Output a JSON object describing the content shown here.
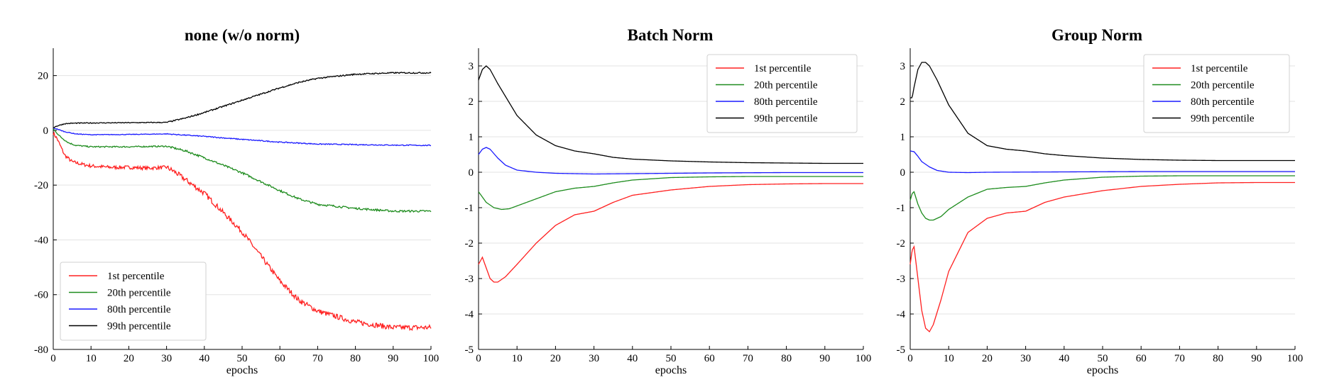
{
  "chart_data": [
    {
      "type": "line",
      "title": "none (w/o norm)",
      "xlabel": "epochs",
      "ylabel": "",
      "xlim": [
        0,
        100
      ],
      "ylim": [
        -80,
        30
      ],
      "xticks": [
        0,
        10,
        20,
        30,
        40,
        50,
        60,
        70,
        80,
        90,
        100
      ],
      "yticks": [
        -80,
        -60,
        -40,
        -20,
        0,
        20
      ],
      "grid": "horizontal",
      "legend_position": "lower-left",
      "series": [
        {
          "name": "1st percentile",
          "color": "#ff2020",
          "noise": 0.8,
          "x": [
            0,
            1,
            2,
            3,
            5,
            8,
            10,
            15,
            20,
            25,
            30,
            32,
            35,
            40,
            45,
            50,
            55,
            60,
            65,
            70,
            75,
            80,
            85,
            90,
            95,
            100
          ],
          "y": [
            -1,
            -3,
            -6,
            -9,
            -11.5,
            -12.5,
            -13,
            -13.5,
            -13.5,
            -13.8,
            -13.5,
            -15,
            -18,
            -23,
            -30,
            -37,
            -46,
            -55,
            -62,
            -66,
            -68,
            -70,
            -71,
            -72,
            -72,
            -72
          ]
        },
        {
          "name": "20th percentile",
          "color": "#1e8c1e",
          "noise": 0.3,
          "x": [
            0,
            1,
            2,
            4,
            6,
            10,
            20,
            30,
            35,
            40,
            50,
            60,
            65,
            70,
            80,
            90,
            100
          ],
          "y": [
            0.5,
            -1,
            -2.5,
            -4.5,
            -5.5,
            -6,
            -6,
            -5.8,
            -7.5,
            -10,
            -15.5,
            -22,
            -25,
            -27,
            -28.5,
            -29.5,
            -29.5
          ]
        },
        {
          "name": "80th percentile",
          "color": "#1a1aff",
          "noise": 0.15,
          "x": [
            0,
            1,
            3,
            6,
            10,
            20,
            30,
            40,
            50,
            60,
            70,
            80,
            90,
            100
          ],
          "y": [
            0.8,
            0.5,
            -0.5,
            -1.3,
            -1.6,
            -1.5,
            -1.3,
            -2.2,
            -3.3,
            -4.3,
            -5,
            -5.2,
            -5.4,
            -5.5
          ]
        },
        {
          "name": "99th percentile",
          "color": "#000000",
          "noise": 0.2,
          "x": [
            0,
            1,
            3,
            5,
            10,
            20,
            30,
            35,
            40,
            50,
            60,
            65,
            70,
            80,
            90,
            100
          ],
          "y": [
            1,
            1.6,
            2.4,
            2.6,
            2.7,
            2.8,
            2.9,
            4.5,
            6.5,
            11,
            15.5,
            17.5,
            19,
            20.5,
            21,
            21
          ]
        }
      ]
    },
    {
      "type": "line",
      "title": "Batch Norm",
      "xlabel": "epochs",
      "ylabel": "",
      "xlim": [
        0,
        100
      ],
      "ylim": [
        -5,
        3.5
      ],
      "xticks": [
        0,
        10,
        20,
        30,
        40,
        50,
        60,
        70,
        80,
        90,
        100
      ],
      "yticks": [
        -5,
        -4,
        -3,
        -2,
        -1,
        0,
        1,
        2,
        3
      ],
      "grid": "horizontal",
      "legend_position": "top-right",
      "series": [
        {
          "name": "1st percentile",
          "color": "#ff2020",
          "noise": 0,
          "x": [
            0,
            1,
            2,
            3,
            4,
            5,
            7,
            10,
            15,
            20,
            25,
            30,
            32,
            35,
            40,
            50,
            60,
            70,
            80,
            90,
            100
          ],
          "y": [
            -2.6,
            -2.4,
            -2.7,
            -3.0,
            -3.1,
            -3.1,
            -2.95,
            -2.6,
            -2.0,
            -1.5,
            -1.2,
            -1.1,
            -1.0,
            -0.85,
            -0.65,
            -0.5,
            -0.4,
            -0.35,
            -0.33,
            -0.32,
            -0.32
          ]
        },
        {
          "name": "20th percentile",
          "color": "#1e8c1e",
          "noise": 0,
          "x": [
            0,
            2,
            4,
            6,
            8,
            10,
            15,
            20,
            25,
            30,
            35,
            40,
            50,
            60,
            70,
            80,
            90,
            100
          ],
          "y": [
            -0.55,
            -0.85,
            -1.0,
            -1.05,
            -1.03,
            -0.95,
            -0.75,
            -0.55,
            -0.45,
            -0.4,
            -0.3,
            -0.22,
            -0.15,
            -0.13,
            -0.12,
            -0.12,
            -0.12,
            -0.12
          ]
        },
        {
          "name": "80th percentile",
          "color": "#1a1aff",
          "noise": 0,
          "x": [
            0,
            1,
            2,
            3,
            5,
            7,
            10,
            15,
            20,
            30,
            40,
            60,
            80,
            100
          ],
          "y": [
            0.5,
            0.65,
            0.7,
            0.65,
            0.4,
            0.2,
            0.06,
            0.0,
            -0.03,
            -0.05,
            -0.04,
            -0.02,
            -0.01,
            -0.01
          ]
        },
        {
          "name": "99th percentile",
          "color": "#000000",
          "noise": 0,
          "x": [
            0,
            1,
            2,
            3,
            5,
            10,
            15,
            20,
            25,
            30,
            35,
            40,
            50,
            60,
            70,
            80,
            90,
            100
          ],
          "y": [
            2.6,
            2.9,
            3.0,
            2.9,
            2.5,
            1.6,
            1.05,
            0.75,
            0.6,
            0.52,
            0.42,
            0.37,
            0.32,
            0.29,
            0.27,
            0.26,
            0.25,
            0.25
          ]
        }
      ]
    },
    {
      "type": "line",
      "title": "Group Norm",
      "xlabel": "epochs",
      "ylabel": "",
      "xlim": [
        0,
        100
      ],
      "ylim": [
        -5,
        3.5
      ],
      "xticks": [
        0,
        10,
        20,
        30,
        40,
        50,
        60,
        70,
        80,
        90,
        100
      ],
      "yticks": [
        -5,
        -4,
        -3,
        -2,
        -1,
        0,
        1,
        2,
        3
      ],
      "grid": "horizontal",
      "legend_position": "top-right",
      "series": [
        {
          "name": "1st percentile",
          "color": "#ff2020",
          "noise": 0,
          "x": [
            0,
            0.5,
            1,
            2,
            3,
            4,
            5,
            6,
            8,
            10,
            15,
            20,
            25,
            30,
            35,
            40,
            50,
            60,
            70,
            80,
            90,
            100
          ],
          "y": [
            -2.6,
            -2.2,
            -2.1,
            -3.0,
            -3.9,
            -4.4,
            -4.5,
            -4.3,
            -3.6,
            -2.8,
            -1.7,
            -1.3,
            -1.15,
            -1.1,
            -0.85,
            -0.7,
            -0.52,
            -0.4,
            -0.34,
            -0.3,
            -0.29,
            -0.29
          ]
        },
        {
          "name": "20th percentile",
          "color": "#1e8c1e",
          "noise": 0,
          "x": [
            0,
            0.5,
            1,
            2,
            3,
            4,
            5,
            6,
            8,
            10,
            15,
            20,
            25,
            30,
            35,
            40,
            50,
            60,
            70,
            80,
            90,
            100
          ],
          "y": [
            -0.8,
            -0.6,
            -0.55,
            -0.9,
            -1.15,
            -1.3,
            -1.35,
            -1.35,
            -1.25,
            -1.05,
            -0.7,
            -0.48,
            -0.43,
            -0.4,
            -0.3,
            -0.22,
            -0.14,
            -0.11,
            -0.1,
            -0.1,
            -0.1,
            -0.1
          ]
        },
        {
          "name": "80th percentile",
          "color": "#1a1aff",
          "noise": 0,
          "x": [
            0,
            1,
            2,
            3,
            5,
            7,
            10,
            15,
            20,
            40,
            60,
            80,
            100
          ],
          "y": [
            0.6,
            0.58,
            0.45,
            0.3,
            0.15,
            0.05,
            0.0,
            -0.01,
            0.0,
            0.01,
            0.02,
            0.02,
            0.02
          ]
        },
        {
          "name": "99th percentile",
          "color": "#000000",
          "noise": 0,
          "x": [
            0,
            0.5,
            1,
            2,
            3,
            4,
            5,
            7,
            10,
            15,
            20,
            25,
            30,
            35,
            40,
            50,
            60,
            70,
            80,
            90,
            100
          ],
          "y": [
            2.1,
            2.1,
            2.4,
            2.9,
            3.1,
            3.1,
            3.0,
            2.6,
            1.9,
            1.1,
            0.75,
            0.65,
            0.6,
            0.52,
            0.47,
            0.4,
            0.36,
            0.34,
            0.33,
            0.33,
            0.33
          ]
        }
      ]
    }
  ]
}
